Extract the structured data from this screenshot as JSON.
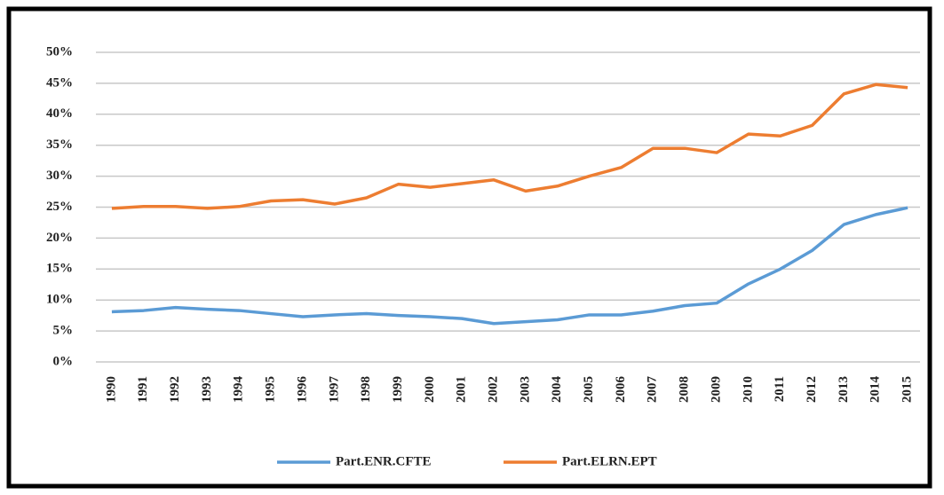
{
  "chart_data": {
    "type": "line",
    "categories": [
      "1990",
      "1991",
      "1992",
      "1993",
      "1994",
      "1995",
      "1996",
      "1997",
      "1998",
      "1999",
      "2000",
      "2001",
      "2002",
      "2003",
      "2004",
      "2005",
      "2006",
      "2007",
      "2008",
      "2009",
      "2010",
      "2011",
      "2012",
      "2013",
      "2014",
      "2015"
    ],
    "series": [
      {
        "name": "Part.ENR.CFTE",
        "color": "#5b9bd5",
        "values": [
          8.1,
          8.3,
          8.8,
          8.5,
          8.3,
          7.8,
          7.3,
          7.6,
          7.8,
          7.5,
          7.3,
          7.0,
          6.2,
          6.5,
          6.8,
          7.6,
          7.6,
          8.2,
          9.1,
          9.5,
          12.6,
          15.0,
          18.0,
          22.2,
          23.8,
          24.9
        ]
      },
      {
        "name": "Part.ELRN.EPT",
        "color": "#ed7d31",
        "values": [
          24.8,
          25.1,
          25.1,
          24.8,
          25.1,
          26.0,
          26.2,
          25.5,
          26.5,
          28.7,
          28.2,
          28.8,
          29.4,
          27.6,
          28.4,
          30.0,
          31.4,
          34.5,
          34.5,
          33.8,
          36.8,
          36.5,
          38.2,
          43.3,
          44.8,
          44.3
        ]
      }
    ],
    "ylim": [
      0,
      50
    ],
    "yticks": [
      {
        "value": 0,
        "label": "0%"
      },
      {
        "value": 5,
        "label": "5%"
      },
      {
        "value": 10,
        "label": "10%"
      },
      {
        "value": 15,
        "label": "15%"
      },
      {
        "value": 20,
        "label": "20%"
      },
      {
        "value": 25,
        "label": "25%"
      },
      {
        "value": 30,
        "label": "30%"
      },
      {
        "value": 35,
        "label": "35%"
      },
      {
        "value": 40,
        "label": "40%"
      },
      {
        "value": 45,
        "label": "45%"
      },
      {
        "value": 50,
        "label": "50%"
      }
    ],
    "grid": true,
    "legend": "bottom"
  }
}
